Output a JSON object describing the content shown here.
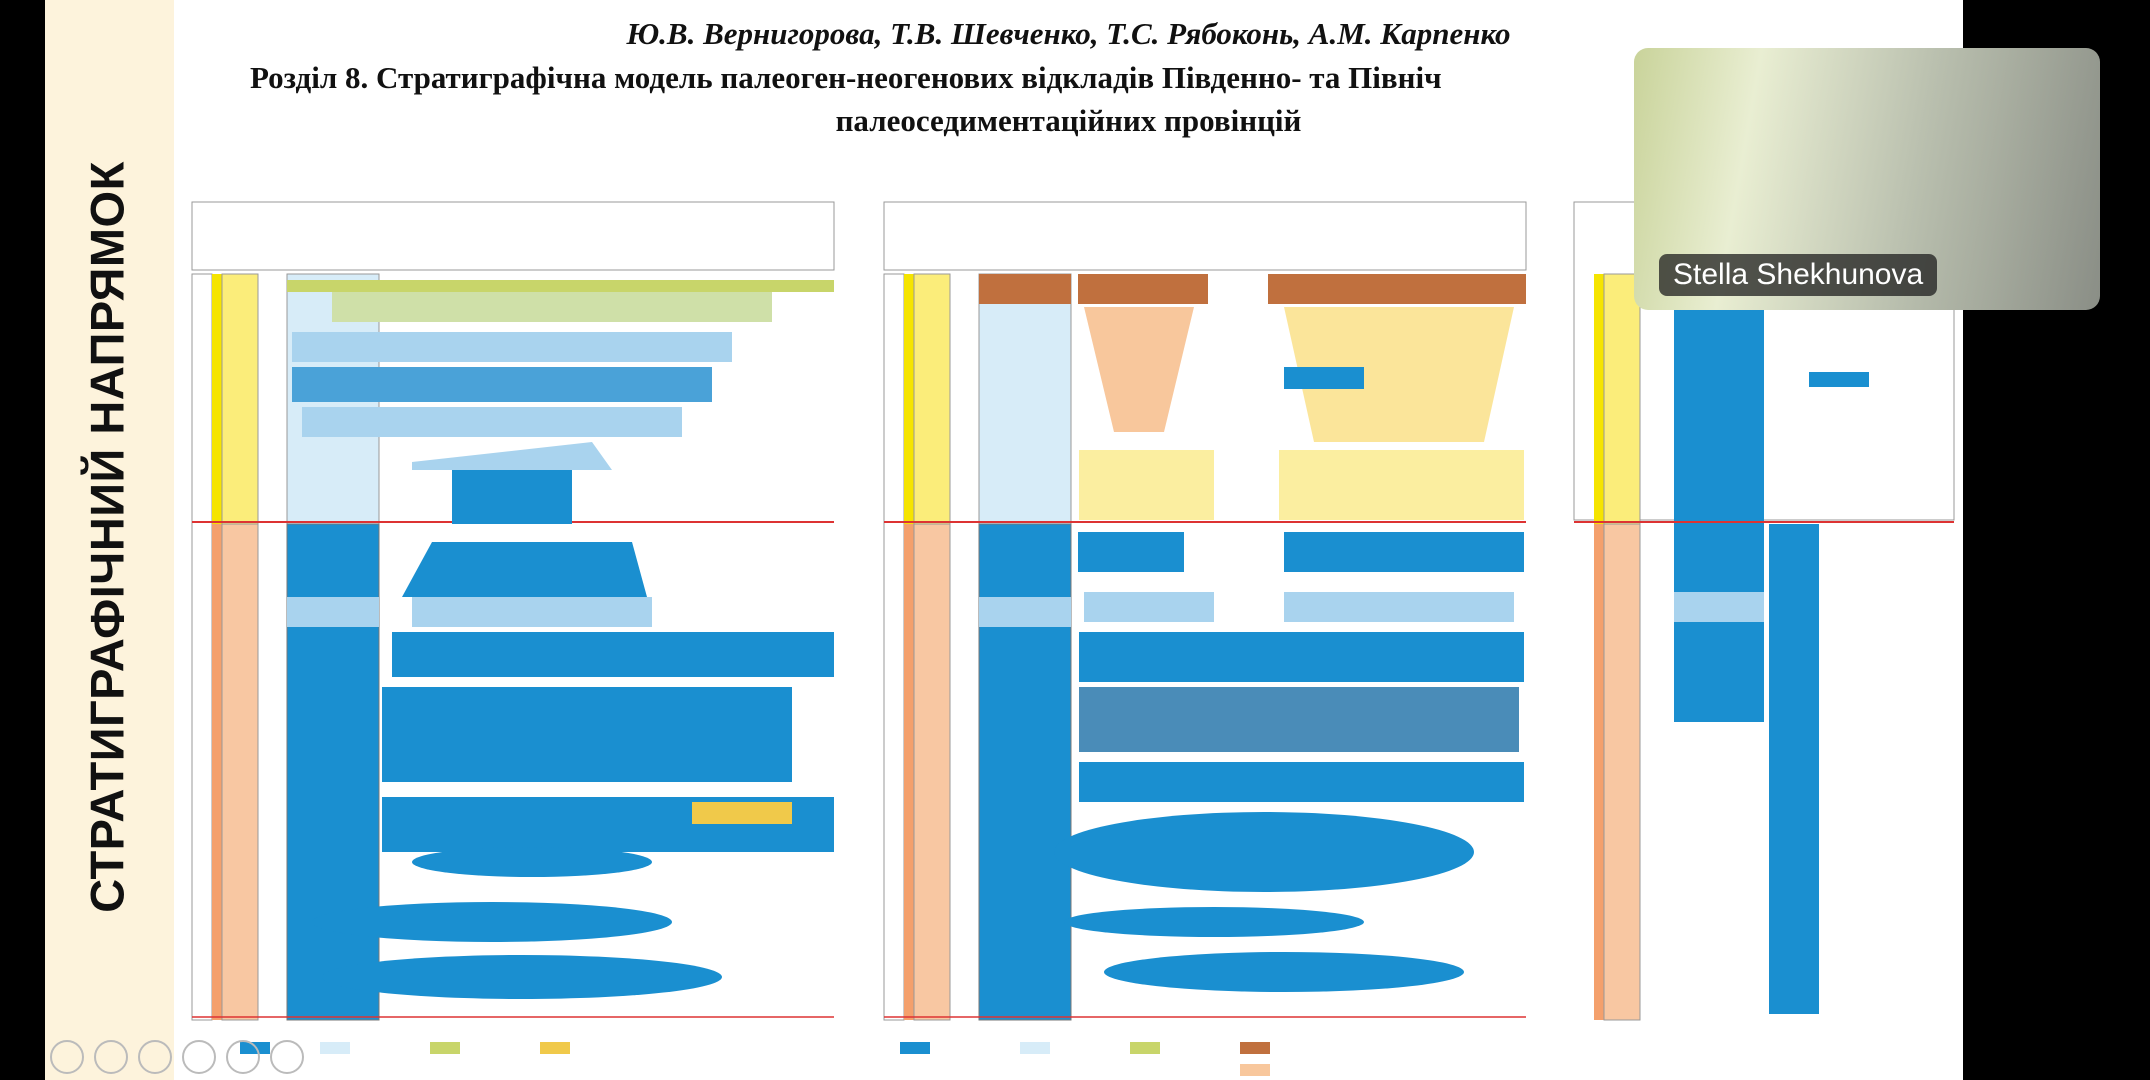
{
  "sidebar": {
    "title": "СТРАТИГРАФІЧНИЙ НАПРЯМОК"
  },
  "slide": {
    "authors": "Ю.В. Вернигорова, Т.В. Шевченко, Т.С. Рябоконь, А.М. Карпенко",
    "section": "Розділ 8. Стратиграфічна модель палеоген-неогенових відкладів Південно- та Північ",
    "section_cont": "палеоседиментаційних провінцій"
  },
  "video": {
    "participant_name": "Stella Shekhunova"
  }
}
